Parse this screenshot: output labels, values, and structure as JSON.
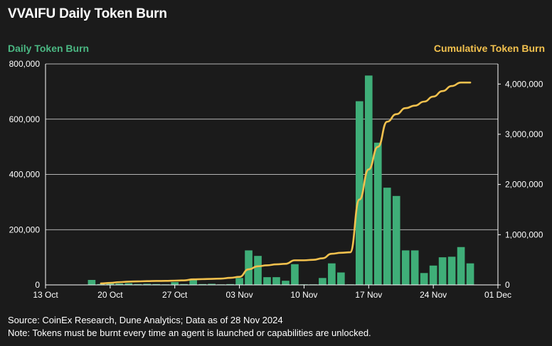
{
  "chart_title": "VVAIFU Daily Token Burn",
  "left_series_label": "Daily Token Burn",
  "right_series_label": "Cumulative Token Burn",
  "source_text": "Source: CoinEx Research, Dune Analytics; Data as of 28 Nov 2024",
  "note_text": "Note: Tokens must be burnt every time an agent is launched or capabilities are unlocked.",
  "colors": {
    "background": "#1b1b1b",
    "bar": "#3fae78",
    "line": "#f2c14e",
    "grid": "#ffffff",
    "left_label": "#4bb883",
    "right_label": "#f2c14e"
  },
  "chart_data": {
    "type": "bar+line",
    "x_ticks": [
      "13 Oct",
      "20 Oct",
      "27 Oct",
      "03 Nov",
      "10 Nov",
      "17 Nov",
      "24 Nov",
      "01 Dec"
    ],
    "x_tick_day_index": [
      0,
      7,
      14,
      21,
      28,
      35,
      42,
      49
    ],
    "y_left": {
      "min": 0,
      "max": 800000,
      "ticks": [
        0,
        200000,
        400000,
        600000,
        800000
      ],
      "tick_labels": [
        "0",
        "200,000",
        "400,000",
        "600,000",
        "800,000"
      ]
    },
    "y_right": {
      "min": 0,
      "max": 4400000,
      "ticks": [
        0,
        1000000,
        2000000,
        3000000,
        4000000
      ],
      "tick_labels": [
        "0",
        "1,000,000",
        "2,000,000",
        "3,000,000",
        "4,000,000"
      ]
    },
    "grid": "horizontal",
    "bars": {
      "name": "Daily Token Burn",
      "dates": [
        "2024-10-18",
        "2024-10-19",
        "2024-10-20",
        "2024-10-21",
        "2024-10-22",
        "2024-10-23",
        "2024-10-24",
        "2024-10-25",
        "2024-10-26",
        "2024-10-27",
        "2024-10-28",
        "2024-10-29",
        "2024-10-30",
        "2024-10-31",
        "2024-11-01",
        "2024-11-02",
        "2024-11-03",
        "2024-11-04",
        "2024-11-05",
        "2024-11-06",
        "2024-11-07",
        "2024-11-08",
        "2024-11-09",
        "2024-11-10",
        "2024-11-11",
        "2024-11-12",
        "2024-11-13",
        "2024-11-14",
        "2024-11-15",
        "2024-11-16",
        "2024-11-17",
        "2024-11-18",
        "2024-11-19",
        "2024-11-20",
        "2024-11-21",
        "2024-11-22",
        "2024-11-23",
        "2024-11-24",
        "2024-11-25",
        "2024-11-26",
        "2024-11-27",
        "2024-11-28"
      ],
      "values": [
        18000,
        3000,
        8000,
        5000,
        6000,
        3000,
        4000,
        3000,
        2000,
        10000,
        3000,
        18000,
        3000,
        4000,
        2000,
        3000,
        25000,
        125000,
        105000,
        28000,
        28000,
        15000,
        75000,
        2000,
        2000,
        25000,
        78000,
        45000,
        2000,
        665000,
        758000,
        515000,
        352000,
        322000,
        125000,
        125000,
        43000,
        70000,
        100000,
        102000,
        137000,
        78000
      ]
    },
    "line": {
      "name": "Cumulative Token Burn",
      "dates": [
        "2024-10-19",
        "2024-10-20",
        "2024-10-21",
        "2024-10-22",
        "2024-10-23",
        "2024-10-24",
        "2024-10-25",
        "2024-10-26",
        "2024-10-27",
        "2024-10-28",
        "2024-10-29",
        "2024-10-30",
        "2024-10-31",
        "2024-11-01",
        "2024-11-02",
        "2024-11-03",
        "2024-11-04",
        "2024-11-05",
        "2024-11-06",
        "2024-11-07",
        "2024-11-08",
        "2024-11-09",
        "2024-11-10",
        "2024-11-11",
        "2024-11-12",
        "2024-11-13",
        "2024-11-14",
        "2024-11-15",
        "2024-11-16",
        "2024-11-17",
        "2024-11-18",
        "2024-11-19",
        "2024-11-20",
        "2024-11-21",
        "2024-11-22",
        "2024-11-23",
        "2024-11-24",
        "2024-11-25",
        "2024-11-26",
        "2024-11-27",
        "2024-11-28"
      ],
      "values": [
        30000,
        40000,
        55000,
        65000,
        70000,
        75000,
        78000,
        80000,
        85000,
        90000,
        110000,
        115000,
        120000,
        125000,
        140000,
        160000,
        310000,
        370000,
        390000,
        410000,
        420000,
        490000,
        490000,
        500000,
        530000,
        620000,
        640000,
        650000,
        1700000,
        2300000,
        2750000,
        3250000,
        3400000,
        3520000,
        3570000,
        3650000,
        3750000,
        3860000,
        3960000,
        4030000,
        4030000
      ]
    }
  }
}
